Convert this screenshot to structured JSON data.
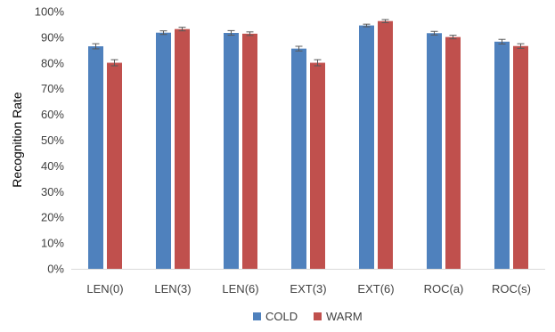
{
  "chart_data": {
    "type": "bar",
    "title": "",
    "xlabel": "",
    "ylabel": "Recognition Rate",
    "categories": [
      "LEN(0)",
      "LEN(3)",
      "LEN(6)",
      "EXT(3)",
      "EXT(6)",
      "ROC(a)",
      "ROC(s)"
    ],
    "series": [
      {
        "name": "COLD",
        "color": "#4f81bd",
        "values": [
          86.5,
          91.8,
          91.7,
          85.6,
          94.6,
          91.6,
          88.3
        ],
        "errors": [
          1.0,
          0.7,
          0.9,
          0.9,
          0.5,
          0.7,
          0.9
        ]
      },
      {
        "name": "WARM",
        "color": "#c0504d",
        "values": [
          80.1,
          93.2,
          91.4,
          80.1,
          96.3,
          90.1,
          86.6
        ],
        "errors": [
          1.2,
          0.7,
          0.7,
          1.2,
          0.6,
          0.7,
          0.9
        ]
      }
    ],
    "ylim": [
      0,
      100
    ],
    "yticks": [
      "0%",
      "10%",
      "20%",
      "30%",
      "40%",
      "50%",
      "60%",
      "70%",
      "80%",
      "90%",
      "100%"
    ],
    "error_bars": true,
    "grid": false,
    "legend": "bottom-center"
  }
}
